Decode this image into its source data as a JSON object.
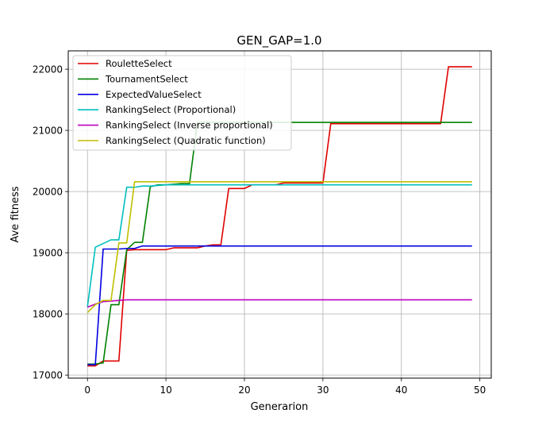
{
  "chart_data": {
    "type": "line",
    "title": "GEN_GAP=1.0",
    "xlabel": "Generarion",
    "ylabel": "Ave fitness",
    "xlim": [
      -2.45,
      51.45
    ],
    "ylim": [
      16950,
      22300
    ],
    "xticks": [
      0,
      10,
      20,
      30,
      40,
      50
    ],
    "yticks": [
      17000,
      18000,
      19000,
      20000,
      21000,
      22000
    ],
    "grid": true,
    "legend_position": "upper-left",
    "series": [
      {
        "name": "RouletteSelect",
        "color": "#e00000",
        "points": [
          [
            0,
            17150
          ],
          [
            1,
            17150
          ],
          [
            2,
            17230
          ],
          [
            3,
            17230
          ],
          [
            4,
            17230
          ],
          [
            5,
            19040
          ],
          [
            6,
            19050
          ],
          [
            7,
            19050
          ],
          [
            8,
            19050
          ],
          [
            9,
            19050
          ],
          [
            10,
            19050
          ],
          [
            11,
            19080
          ],
          [
            12,
            19080
          ],
          [
            13,
            19080
          ],
          [
            14,
            19080
          ],
          [
            15,
            19110
          ],
          [
            16,
            19130
          ],
          [
            17,
            19130
          ],
          [
            18,
            20050
          ],
          [
            19,
            20050
          ],
          [
            20,
            20050
          ],
          [
            21,
            20110
          ],
          [
            22,
            20110
          ],
          [
            23,
            20110
          ],
          [
            24,
            20110
          ],
          [
            25,
            20140
          ],
          [
            26,
            20140
          ],
          [
            27,
            20140
          ],
          [
            28,
            20140
          ],
          [
            29,
            20140
          ],
          [
            30,
            20140
          ],
          [
            31,
            21110
          ],
          [
            32,
            21110
          ],
          [
            33,
            21110
          ],
          [
            34,
            21110
          ],
          [
            35,
            21110
          ],
          [
            36,
            21110
          ],
          [
            37,
            21110
          ],
          [
            38,
            21110
          ],
          [
            39,
            21110
          ],
          [
            40,
            21110
          ],
          [
            41,
            21110
          ],
          [
            42,
            21110
          ],
          [
            43,
            21110
          ],
          [
            44,
            21110
          ],
          [
            45,
            21110
          ],
          [
            46,
            22040
          ],
          [
            47,
            22040
          ],
          [
            48,
            22040
          ],
          [
            49,
            22040
          ]
        ]
      },
      {
        "name": "TournamentSelect",
        "color": "#008000",
        "points": [
          [
            0,
            17180
          ],
          [
            1,
            17180
          ],
          [
            2,
            17200
          ],
          [
            3,
            18150
          ],
          [
            4,
            18150
          ],
          [
            5,
            19050
          ],
          [
            6,
            19170
          ],
          [
            7,
            19170
          ],
          [
            8,
            20080
          ],
          [
            9,
            20110
          ],
          [
            10,
            20110
          ],
          [
            11,
            20120
          ],
          [
            12,
            20130
          ],
          [
            13,
            20130
          ],
          [
            14,
            21130
          ],
          [
            15,
            21130
          ],
          [
            16,
            21130
          ],
          [
            17,
            21130
          ],
          [
            18,
            21130
          ],
          [
            19,
            21130
          ],
          [
            20,
            21130
          ],
          [
            21,
            21130
          ],
          [
            22,
            21130
          ],
          [
            23,
            21130
          ],
          [
            24,
            21130
          ],
          [
            25,
            21130
          ],
          [
            26,
            21130
          ],
          [
            27,
            21130
          ],
          [
            28,
            21130
          ],
          [
            29,
            21130
          ],
          [
            30,
            21130
          ],
          [
            31,
            21130
          ],
          [
            32,
            21130
          ],
          [
            33,
            21130
          ],
          [
            34,
            21130
          ],
          [
            35,
            21130
          ],
          [
            36,
            21130
          ],
          [
            37,
            21130
          ],
          [
            38,
            21130
          ],
          [
            39,
            21130
          ],
          [
            40,
            21130
          ],
          [
            41,
            21130
          ],
          [
            42,
            21130
          ],
          [
            43,
            21130
          ],
          [
            44,
            21130
          ],
          [
            45,
            21130
          ],
          [
            46,
            21130
          ],
          [
            47,
            21130
          ],
          [
            48,
            21130
          ],
          [
            49,
            21130
          ]
        ]
      },
      {
        "name": "ExpectedValueSelect",
        "color": "#0000e0",
        "points": [
          [
            0,
            17170
          ],
          [
            1,
            17170
          ],
          [
            2,
            19060
          ],
          [
            3,
            19060
          ],
          [
            4,
            19060
          ],
          [
            5,
            19070
          ],
          [
            6,
            19070
          ],
          [
            7,
            19110
          ],
          [
            8,
            19110
          ],
          [
            9,
            19110
          ],
          [
            10,
            19110
          ],
          [
            11,
            19110
          ],
          [
            12,
            19110
          ],
          [
            13,
            19110
          ],
          [
            14,
            19110
          ],
          [
            15,
            19110
          ],
          [
            16,
            19110
          ],
          [
            17,
            19110
          ],
          [
            18,
            19110
          ],
          [
            19,
            19110
          ],
          [
            20,
            19110
          ],
          [
            21,
            19110
          ],
          [
            22,
            19110
          ],
          [
            23,
            19110
          ],
          [
            24,
            19110
          ],
          [
            25,
            19110
          ],
          [
            26,
            19110
          ],
          [
            27,
            19110
          ],
          [
            28,
            19110
          ],
          [
            29,
            19110
          ],
          [
            30,
            19110
          ],
          [
            31,
            19110
          ],
          [
            32,
            19110
          ],
          [
            33,
            19110
          ],
          [
            34,
            19110
          ],
          [
            35,
            19110
          ],
          [
            36,
            19110
          ],
          [
            37,
            19110
          ],
          [
            38,
            19110
          ],
          [
            39,
            19110
          ],
          [
            40,
            19110
          ],
          [
            41,
            19110
          ],
          [
            42,
            19110
          ],
          [
            43,
            19110
          ],
          [
            44,
            19110
          ],
          [
            45,
            19110
          ],
          [
            46,
            19110
          ],
          [
            47,
            19110
          ],
          [
            48,
            19110
          ],
          [
            49,
            19110
          ]
        ]
      },
      {
        "name": "RankingSelect (Proportional)",
        "color": "#00bfbf",
        "points": [
          [
            0,
            18120
          ],
          [
            1,
            19090
          ],
          [
            2,
            19150
          ],
          [
            3,
            19210
          ],
          [
            4,
            19210
          ],
          [
            5,
            20070
          ],
          [
            6,
            20070
          ],
          [
            7,
            20090
          ],
          [
            8,
            20090
          ],
          [
            9,
            20100
          ],
          [
            10,
            20110
          ],
          [
            11,
            20110
          ],
          [
            12,
            20110
          ],
          [
            13,
            20110
          ],
          [
            14,
            20110
          ],
          [
            15,
            20110
          ],
          [
            16,
            20110
          ],
          [
            17,
            20110
          ],
          [
            18,
            20110
          ],
          [
            19,
            20110
          ],
          [
            20,
            20110
          ],
          [
            21,
            20110
          ],
          [
            22,
            20110
          ],
          [
            23,
            20110
          ],
          [
            24,
            20110
          ],
          [
            25,
            20110
          ],
          [
            26,
            20110
          ],
          [
            27,
            20110
          ],
          [
            28,
            20110
          ],
          [
            29,
            20110
          ],
          [
            30,
            20110
          ],
          [
            31,
            20110
          ],
          [
            32,
            20110
          ],
          [
            33,
            20110
          ],
          [
            34,
            20110
          ],
          [
            35,
            20110
          ],
          [
            36,
            20110
          ],
          [
            37,
            20110
          ],
          [
            38,
            20110
          ],
          [
            39,
            20110
          ],
          [
            40,
            20110
          ],
          [
            41,
            20110
          ],
          [
            42,
            20110
          ],
          [
            43,
            20110
          ],
          [
            44,
            20110
          ],
          [
            45,
            20110
          ],
          [
            46,
            20110
          ],
          [
            47,
            20110
          ],
          [
            48,
            20110
          ],
          [
            49,
            20110
          ]
        ]
      },
      {
        "name": "RankingSelect (Inverse proportional)",
        "color": "#bf00bf",
        "points": [
          [
            0,
            18110
          ],
          [
            1,
            18160
          ],
          [
            2,
            18200
          ],
          [
            3,
            18210
          ],
          [
            4,
            18220
          ],
          [
            5,
            18230
          ],
          [
            6,
            18230
          ],
          [
            7,
            18230
          ],
          [
            8,
            18230
          ],
          [
            9,
            18230
          ],
          [
            10,
            18230
          ],
          [
            11,
            18230
          ],
          [
            12,
            18230
          ],
          [
            13,
            18230
          ],
          [
            14,
            18230
          ],
          [
            15,
            18230
          ],
          [
            16,
            18230
          ],
          [
            17,
            18230
          ],
          [
            18,
            18230
          ],
          [
            19,
            18230
          ],
          [
            20,
            18230
          ],
          [
            21,
            18230
          ],
          [
            22,
            18230
          ],
          [
            23,
            18230
          ],
          [
            24,
            18230
          ],
          [
            25,
            18230
          ],
          [
            26,
            18230
          ],
          [
            27,
            18230
          ],
          [
            28,
            18230
          ],
          [
            29,
            18230
          ],
          [
            30,
            18230
          ],
          [
            31,
            18230
          ],
          [
            32,
            18230
          ],
          [
            33,
            18230
          ],
          [
            34,
            18230
          ],
          [
            35,
            18230
          ],
          [
            36,
            18230
          ],
          [
            37,
            18230
          ],
          [
            38,
            18230
          ],
          [
            39,
            18230
          ],
          [
            40,
            18230
          ],
          [
            41,
            18230
          ],
          [
            42,
            18230
          ],
          [
            43,
            18230
          ],
          [
            44,
            18230
          ],
          [
            45,
            18230
          ],
          [
            46,
            18230
          ],
          [
            47,
            18230
          ],
          [
            48,
            18230
          ],
          [
            49,
            18230
          ]
        ]
      },
      {
        "name": "RankingSelect (Quadratic function)",
        "color": "#bfbf00",
        "points": [
          [
            0,
            18020
          ],
          [
            1,
            18150
          ],
          [
            2,
            18220
          ],
          [
            3,
            18220
          ],
          [
            4,
            19160
          ],
          [
            5,
            19160
          ],
          [
            6,
            20160
          ],
          [
            7,
            20160
          ],
          [
            8,
            20160
          ],
          [
            9,
            20160
          ],
          [
            10,
            20160
          ],
          [
            11,
            20160
          ],
          [
            12,
            20160
          ],
          [
            13,
            20160
          ],
          [
            14,
            20160
          ],
          [
            15,
            20160
          ],
          [
            16,
            20160
          ],
          [
            17,
            20160
          ],
          [
            18,
            20160
          ],
          [
            19,
            20160
          ],
          [
            20,
            20160
          ],
          [
            21,
            20160
          ],
          [
            22,
            20160
          ],
          [
            23,
            20160
          ],
          [
            24,
            20160
          ],
          [
            25,
            20160
          ],
          [
            26,
            20160
          ],
          [
            27,
            20160
          ],
          [
            28,
            20160
          ],
          [
            29,
            20160
          ],
          [
            30,
            20160
          ],
          [
            31,
            20160
          ],
          [
            32,
            20160
          ],
          [
            33,
            20160
          ],
          [
            34,
            20160
          ],
          [
            35,
            20160
          ],
          [
            36,
            20160
          ],
          [
            37,
            20160
          ],
          [
            38,
            20160
          ],
          [
            39,
            20160
          ],
          [
            40,
            20160
          ],
          [
            41,
            20160
          ],
          [
            42,
            20160
          ],
          [
            43,
            20160
          ],
          [
            44,
            20160
          ],
          [
            45,
            20160
          ],
          [
            46,
            20160
          ],
          [
            47,
            20160
          ],
          [
            48,
            20160
          ],
          [
            49,
            20160
          ]
        ]
      }
    ]
  }
}
